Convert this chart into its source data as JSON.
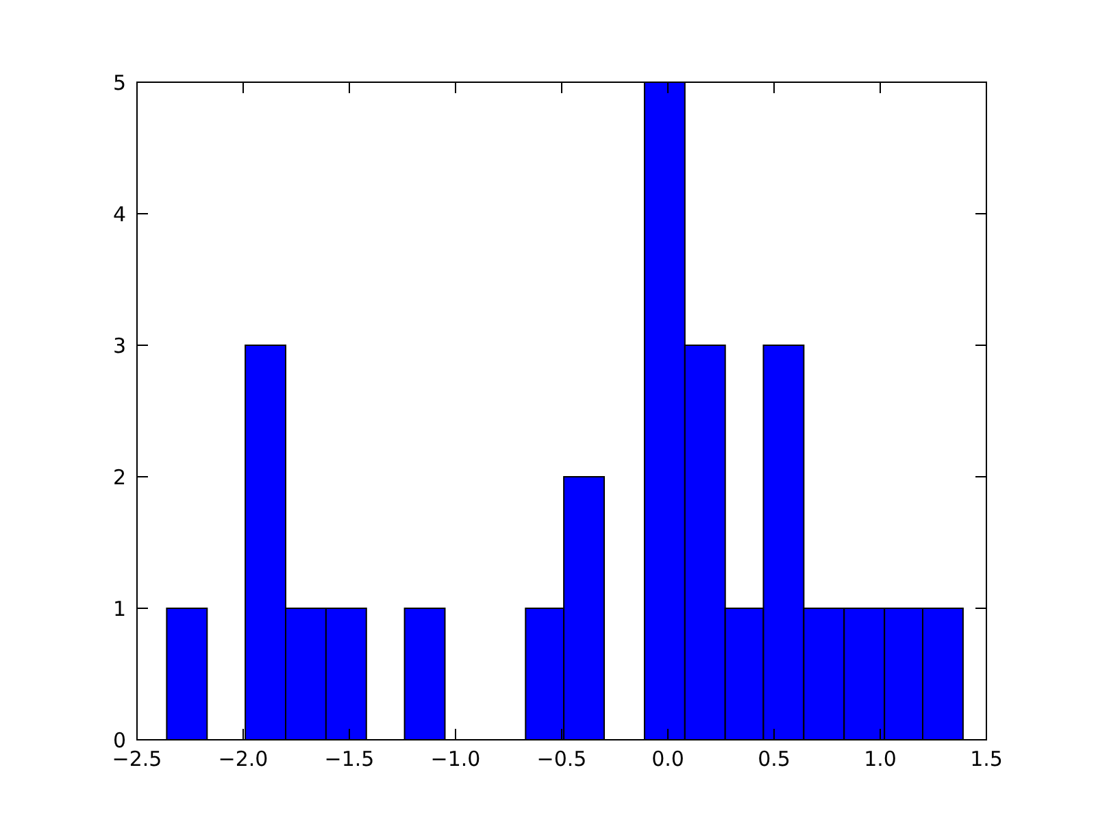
{
  "chart_data": {
    "type": "histogram",
    "bins": [
      -2.36,
      -2.17,
      -1.99,
      -1.8,
      -1.61,
      -1.42,
      -1.24,
      -1.05,
      -0.67,
      -0.49,
      -0.3,
      -0.11,
      0.08,
      0.27,
      0.45,
      0.64,
      0.83,
      1.02,
      1.2,
      1.39
    ],
    "values": [
      1,
      0,
      3,
      1,
      1,
      0,
      1,
      0,
      1,
      2,
      0,
      5,
      3,
      1,
      3,
      1,
      1,
      1,
      1
    ],
    "color": "#0000ff",
    "xlim": [
      -2.5,
      1.5
    ],
    "xticks": [
      {
        "value": -2.5,
        "label": "−2.5"
      },
      {
        "value": -2,
        "label": "−2.0"
      },
      {
        "value": -1.5,
        "label": "−1.5"
      },
      {
        "value": -1,
        "label": "−1.0"
      },
      {
        "value": -0.5,
        "label": "−0.5"
      },
      {
        "value": 0,
        "label": "0.0"
      },
      {
        "value": 0.5,
        "label": "0.5"
      },
      {
        "value": 1,
        "label": "1.0"
      },
      {
        "value": 1.5,
        "label": "1.5"
      }
    ],
    "ylim": [
      0,
      5
    ],
    "yticks": [
      0,
      1,
      2,
      3,
      4,
      5
    ]
  }
}
